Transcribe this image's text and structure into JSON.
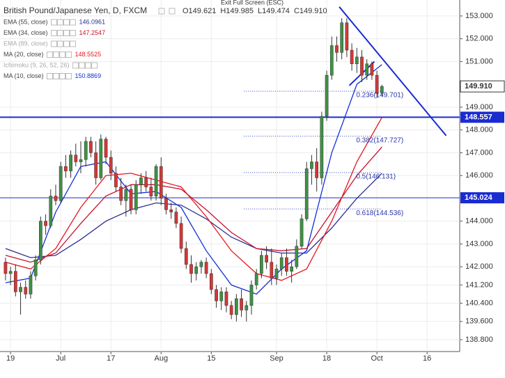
{
  "chart_data": {
    "type": "candlestick",
    "title": "British Pound/Japanese Yen, D, FXCM",
    "ohlc_labels": [
      "O149.621",
      "H149.985",
      "L149.474",
      "C149.910"
    ],
    "banner": "Exit Full Screen (ESC)",
    "colors": {
      "up": "#3f9144",
      "down": "#d63636"
    },
    "xlim": [
      -1.1,
      90.5
    ],
    "ylim": [
      138.28,
      153.7
    ],
    "grid": true,
    "xticks": [
      {
        "value": 1,
        "label": "19"
      },
      {
        "value": 11,
        "label": "Jul"
      },
      {
        "value": 21,
        "label": "17"
      },
      {
        "value": 31,
        "label": "Aug"
      },
      {
        "value": 41,
        "label": "15"
      },
      {
        "value": 54,
        "label": "Sep"
      },
      {
        "value": 64,
        "label": "18"
      },
      {
        "value": 74,
        "label": "Oct"
      },
      {
        "value": 84,
        "label": "16"
      }
    ],
    "yticks": [
      {
        "value": 153,
        "label": "153.000"
      },
      {
        "value": 152,
        "label": "152.000"
      },
      {
        "value": 151,
        "label": "151.000"
      },
      {
        "value": 149,
        "label": "149.000"
      },
      {
        "value": 148,
        "label": "148.000"
      },
      {
        "value": 147,
        "label": "147.000"
      },
      {
        "value": 146,
        "label": "146.000"
      },
      {
        "value": 144,
        "label": "144.000"
      },
      {
        "value": 143,
        "label": "143.000"
      },
      {
        "value": 142,
        "label": "142.000"
      },
      {
        "value": 141.2,
        "label": "141.200"
      },
      {
        "value": 140.4,
        "label": "140.400"
      },
      {
        "value": 139.6,
        "label": "139.600"
      },
      {
        "value": 138.8,
        "label": "138.800"
      }
    ],
    "candles": [
      [
        142.2,
        142.4,
        141.4,
        141.7
      ],
      [
        141.7,
        142.0,
        141.2,
        141.8
      ],
      [
        141.8,
        142.1,
        140.7,
        140.9
      ],
      [
        140.9,
        141.3,
        139.9,
        141.1
      ],
      [
        141.1,
        141.4,
        140.6,
        140.8
      ],
      [
        140.8,
        141.8,
        140.6,
        141.6
      ],
      [
        141.6,
        142.5,
        141.4,
        142.3
      ],
      [
        142.3,
        144.2,
        142.1,
        144.0
      ],
      [
        144.0,
        144.3,
        143.4,
        143.8
      ],
      [
        143.8,
        145.4,
        143.7,
        145.1
      ],
      [
        145.1,
        145.6,
        144.7,
        144.9
      ],
      [
        144.9,
        146.6,
        144.8,
        146.4
      ],
      [
        146.4,
        146.9,
        145.9,
        146.2
      ],
      [
        146.2,
        147.1,
        145.9,
        146.9
      ],
      [
        146.9,
        147.4,
        146.4,
        146.6
      ],
      [
        146.6,
        147.5,
        146.1,
        146.7
      ],
      [
        146.7,
        147.7,
        146.4,
        147.5
      ],
      [
        147.5,
        147.7,
        146.8,
        147.0
      ],
      [
        147.0,
        147.5,
        145.6,
        145.9
      ],
      [
        145.9,
        147.8,
        145.8,
        147.6
      ],
      [
        147.6,
        147.7,
        146.5,
        146.8
      ],
      [
        146.8,
        147.1,
        145.8,
        146.1
      ],
      [
        146.1,
        146.4,
        145.3,
        145.5
      ],
      [
        145.5,
        145.9,
        144.7,
        144.9
      ],
      [
        144.9,
        145.6,
        144.2,
        145.4
      ],
      [
        145.4,
        145.6,
        144.3,
        144.5
      ],
      [
        144.5,
        145.8,
        144.3,
        145.6
      ],
      [
        145.6,
        146.1,
        145.2,
        145.9
      ],
      [
        145.9,
        146.2,
        145.3,
        145.5
      ],
      [
        145.5,
        145.9,
        144.9,
        145.1
      ],
      [
        145.1,
        146.5,
        144.9,
        146.4
      ],
      [
        146.4,
        146.8,
        144.7,
        145.0
      ],
      [
        145.0,
        145.2,
        144.3,
        144.5
      ],
      [
        144.5,
        144.8,
        144.1,
        144.4
      ],
      [
        144.4,
        144.6,
        143.7,
        143.9
      ],
      [
        143.9,
        144.2,
        142.6,
        142.8
      ],
      [
        142.8,
        143.1,
        141.9,
        142.1
      ],
      [
        142.1,
        142.5,
        141.3,
        141.7
      ],
      [
        141.7,
        142.2,
        141.4,
        142.0
      ],
      [
        142.0,
        142.3,
        141.7,
        142.2
      ],
      [
        142.2,
        142.4,
        141.5,
        141.7
      ],
      [
        141.7,
        141.9,
        140.8,
        141.0
      ],
      [
        141.0,
        141.2,
        140.2,
        140.5
      ],
      [
        140.5,
        141.1,
        140.1,
        140.9
      ],
      [
        140.9,
        141.1,
        140.0,
        140.3
      ],
      [
        140.3,
        140.5,
        139.7,
        139.9
      ],
      [
        139.9,
        140.8,
        139.6,
        140.6
      ],
      [
        140.6,
        141.0,
        139.8,
        140.1
      ],
      [
        140.1,
        140.5,
        139.6,
        140.3
      ],
      [
        140.3,
        141.4,
        139.9,
        141.2
      ],
      [
        141.2,
        141.9,
        141.0,
        141.7
      ],
      [
        141.7,
        142.7,
        141.5,
        142.5
      ],
      [
        142.5,
        142.9,
        141.9,
        142.2
      ],
      [
        142.2,
        142.8,
        141.2,
        141.5
      ],
      [
        141.5,
        142.1,
        141.2,
        141.9
      ],
      [
        141.9,
        142.6,
        141.6,
        142.4
      ],
      [
        142.4,
        142.8,
        141.6,
        141.8
      ],
      [
        141.8,
        142.3,
        141.3,
        142.0
      ],
      [
        142.0,
        143.2,
        141.9,
        142.9
      ],
      [
        142.9,
        144.3,
        142.8,
        144.1
      ],
      [
        144.1,
        146.6,
        144.0,
        146.3
      ],
      [
        146.3,
        146.9,
        145.6,
        146.6
      ],
      [
        146.6,
        147.2,
        145.3,
        145.9
      ],
      [
        145.9,
        148.8,
        145.6,
        148.6
      ],
      [
        148.6,
        150.6,
        148.4,
        150.4
      ],
      [
        150.4,
        152.1,
        150.2,
        151.7
      ],
      [
        151.7,
        152.1,
        151.0,
        151.4
      ],
      [
        151.4,
        152.9,
        151.1,
        152.7
      ],
      [
        152.7,
        152.9,
        151.2,
        151.5
      ],
      [
        151.5,
        151.8,
        150.6,
        150.9
      ],
      [
        150.9,
        151.6,
        150.5,
        151.2
      ],
      [
        151.2,
        151.5,
        150.1,
        150.4
      ],
      [
        150.4,
        151.1,
        150.2,
        150.9
      ],
      [
        150.9,
        151.0,
        150.2,
        150.4
      ],
      [
        150.4,
        150.6,
        149.4,
        149.6
      ],
      [
        149.621,
        149.985,
        149.474,
        149.91
      ]
    ],
    "series": [
      {
        "name": "EMA (55, close)",
        "value": 146.0961,
        "color": "#2b2f8f",
        "x": [
          0,
          5,
          10,
          15,
          20,
          25,
          30,
          35,
          40,
          45,
          50,
          55,
          60,
          65,
          70,
          75
        ],
        "values": [
          142.8,
          142.4,
          142.5,
          143.2,
          144.0,
          144.5,
          144.8,
          144.7,
          144.1,
          143.3,
          142.8,
          142.6,
          142.6,
          143.7,
          145.0,
          146.1
        ]
      },
      {
        "name": "EMA (34, close)",
        "value": 147.2547,
        "color": "#c8102e",
        "x": [
          0,
          5,
          10,
          15,
          20,
          25,
          30,
          35,
          40,
          45,
          50,
          55,
          60,
          65,
          70,
          75
        ],
        "values": [
          142.5,
          142.2,
          142.6,
          143.9,
          145.1,
          145.6,
          145.6,
          145.4,
          144.5,
          143.5,
          142.8,
          142.7,
          142.8,
          144.4,
          146.0,
          147.25
        ]
      },
      {
        "name": "EMA (89, close)",
        "color": "#bbbbbb",
        "hidden": true
      },
      {
        "name": "MA (20, close)",
        "value": 148.5525,
        "color": "#e8141c",
        "x": [
          0,
          5,
          10,
          15,
          20,
          25,
          30,
          35,
          40,
          45,
          50,
          55,
          60,
          65,
          70,
          75
        ],
        "values": [
          142.2,
          141.9,
          142.8,
          144.6,
          146.0,
          146.1,
          145.8,
          145.5,
          144.2,
          142.7,
          141.7,
          141.4,
          141.9,
          144.0,
          146.6,
          148.55
        ]
      },
      {
        "name": "Ichimoku (9, 26, 52, 26)",
        "color": "#bbbbbb",
        "hidden": true
      },
      {
        "name": "MA (10, close)",
        "value": 150.8869,
        "color": "#1230d6",
        "x": [
          0,
          5,
          10,
          15,
          20,
          25,
          30,
          35,
          40,
          45,
          50,
          55,
          60,
          65,
          70,
          75
        ],
        "values": [
          141.3,
          141.5,
          144.4,
          146.4,
          146.6,
          145.2,
          145.3,
          144.6,
          142.7,
          141.2,
          140.8,
          141.9,
          142.7,
          147.0,
          150.0,
          150.87
        ]
      }
    ],
    "last_price": {
      "value": 149.91,
      "label": "149.910"
    },
    "hlines": [
      {
        "value": 148.557,
        "label": "148.557",
        "width": 2
      },
      {
        "value": 145.024,
        "label": "145.024",
        "width": 1
      }
    ],
    "trendlines": [
      {
        "x": [
          66.5,
          87.8
        ],
        "y": [
          153.4,
          147.75
        ]
      },
      {
        "x": [
          68.5,
          73.5
        ],
        "y": [
          149.95,
          151.0
        ]
      }
    ],
    "fib_x": [
      47.5,
      75
    ],
    "fib": [
      {
        "value": 149.701,
        "label": "0.236(149.701)"
      },
      {
        "value": 147.727,
        "label": "0.382(147.727)"
      },
      {
        "value": 146.131,
        "label": "0.5(146.131)"
      },
      {
        "value": 144.536,
        "label": "0.618(144.536)"
      }
    ]
  }
}
